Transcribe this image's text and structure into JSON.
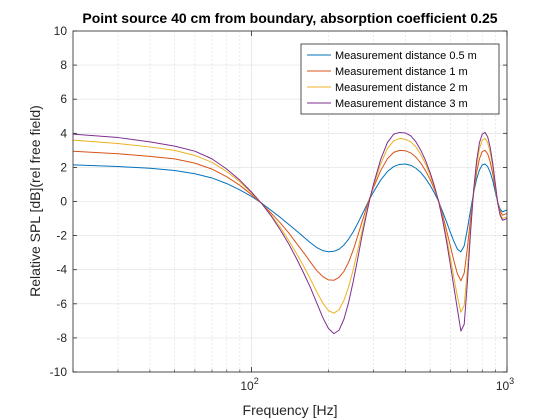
{
  "chart_data": {
    "type": "line",
    "title": "Point source 40 cm from boundary, absorption coefficient 0.25",
    "xlabel": "Frequency [Hz]",
    "ylabel": "Relative SPL [dB](rel free field)",
    "xscale": "log",
    "xlim": [
      20,
      1000
    ],
    "ylim": [
      -10,
      10
    ],
    "grid": true,
    "minor_grid_x": true,
    "legend_position": "top-right",
    "x_ticks": [
      {
        "value": 100,
        "base": "10",
        "exp": "2"
      },
      {
        "value": 1000,
        "base": "10",
        "exp": "3"
      }
    ],
    "y_ticks": [
      -10,
      -8,
      -6,
      -4,
      -2,
      0,
      2,
      4,
      6,
      8,
      10
    ],
    "x": [
      20,
      30,
      40,
      50,
      60,
      70,
      80,
      90,
      100,
      110,
      120,
      130,
      140,
      150,
      160,
      170,
      180,
      190,
      200,
      210,
      220,
      230,
      240,
      250,
      260,
      270,
      280,
      290,
      300,
      320,
      340,
      360,
      380,
      400,
      420,
      440,
      460,
      480,
      500,
      520,
      540,
      560,
      580,
      600,
      620,
      640,
      660,
      680,
      700,
      720,
      740,
      760,
      780,
      800,
      820,
      840,
      860,
      880,
      900,
      920,
      940,
      960,
      980,
      1000
    ],
    "series": [
      {
        "name": "Measurement distance 0.5 m",
        "color": "#0072BD",
        "values": [
          2.15,
          2.05,
          1.95,
          1.82,
          1.63,
          1.38,
          1.05,
          0.68,
          0.3,
          -0.12,
          -0.55,
          -0.95,
          -1.35,
          -1.72,
          -2.08,
          -2.42,
          -2.7,
          -2.88,
          -2.95,
          -2.92,
          -2.8,
          -2.55,
          -2.2,
          -1.78,
          -1.3,
          -0.8,
          -0.32,
          0.15,
          0.55,
          1.25,
          1.75,
          2.05,
          2.18,
          2.2,
          2.12,
          1.95,
          1.7,
          1.35,
          0.95,
          0.5,
          0.0,
          -0.6,
          -1.2,
          -1.8,
          -2.35,
          -2.8,
          -2.95,
          -2.6,
          -1.6,
          -0.5,
          0.5,
          1.3,
          1.85,
          2.15,
          2.2,
          2.05,
          1.7,
          1.2,
          0.55,
          -0.05,
          -0.45,
          -0.6,
          -0.55,
          -0.5
        ]
      },
      {
        "name": "Measurement distance 1 m",
        "color": "#D95319",
        "values": [
          2.95,
          2.8,
          2.65,
          2.5,
          2.25,
          1.9,
          1.45,
          0.95,
          0.4,
          -0.15,
          -0.72,
          -1.28,
          -1.85,
          -2.45,
          -3.0,
          -3.55,
          -4.05,
          -4.4,
          -4.6,
          -4.62,
          -4.45,
          -4.1,
          -3.55,
          -2.85,
          -2.05,
          -1.25,
          -0.5,
          0.2,
          0.8,
          1.8,
          2.5,
          2.88,
          3.0,
          2.98,
          2.85,
          2.6,
          2.25,
          1.8,
          1.3,
          0.7,
          0.05,
          -0.8,
          -1.7,
          -2.6,
          -3.5,
          -4.25,
          -4.65,
          -4.2,
          -2.7,
          -1.0,
          0.5,
          1.7,
          2.5,
          2.92,
          3.0,
          2.8,
          2.3,
          1.6,
          0.75,
          -0.05,
          -0.55,
          -0.8,
          -0.75,
          -0.7
        ]
      },
      {
        "name": "Measurement distance 2 m",
        "color": "#EDB120",
        "values": [
          3.6,
          3.4,
          3.2,
          3.0,
          2.7,
          2.3,
          1.75,
          1.15,
          0.5,
          -0.15,
          -0.85,
          -1.55,
          -2.3,
          -3.05,
          -3.8,
          -4.55,
          -5.3,
          -5.95,
          -6.4,
          -6.55,
          -6.35,
          -5.8,
          -5.0,
          -4.0,
          -2.9,
          -1.8,
          -0.8,
          0.1,
          0.9,
          2.2,
          3.1,
          3.55,
          3.7,
          3.65,
          3.5,
          3.2,
          2.75,
          2.2,
          1.55,
          0.8,
          0.0,
          -1.0,
          -2.1,
          -3.3,
          -4.5,
          -5.6,
          -6.5,
          -6.1,
          -4.0,
          -1.5,
          0.6,
          2.1,
          3.1,
          3.6,
          3.7,
          3.45,
          2.85,
          2.0,
          0.95,
          -0.1,
          -0.7,
          -1.0,
          -0.95,
          -0.9
        ]
      },
      {
        "name": "Measurement distance 3 m",
        "color": "#7E2F8E",
        "values": [
          3.95,
          3.75,
          3.5,
          3.25,
          2.95,
          2.5,
          1.9,
          1.25,
          0.55,
          -0.15,
          -0.9,
          -1.7,
          -2.5,
          -3.35,
          -4.2,
          -5.05,
          -5.95,
          -6.8,
          -7.45,
          -7.75,
          -7.55,
          -6.9,
          -5.9,
          -4.7,
          -3.4,
          -2.1,
          -0.95,
          0.1,
          1.0,
          2.45,
          3.45,
          3.95,
          4.05,
          4.02,
          3.85,
          3.5,
          3.0,
          2.4,
          1.7,
          0.9,
          0.0,
          -1.1,
          -2.35,
          -3.7,
          -5.05,
          -6.35,
          -7.6,
          -7.2,
          -4.7,
          -1.8,
          0.65,
          2.35,
          3.45,
          3.95,
          4.05,
          3.8,
          3.15,
          2.2,
          1.05,
          -0.1,
          -0.8,
          -1.1,
          -1.05,
          -1.0
        ]
      }
    ]
  }
}
